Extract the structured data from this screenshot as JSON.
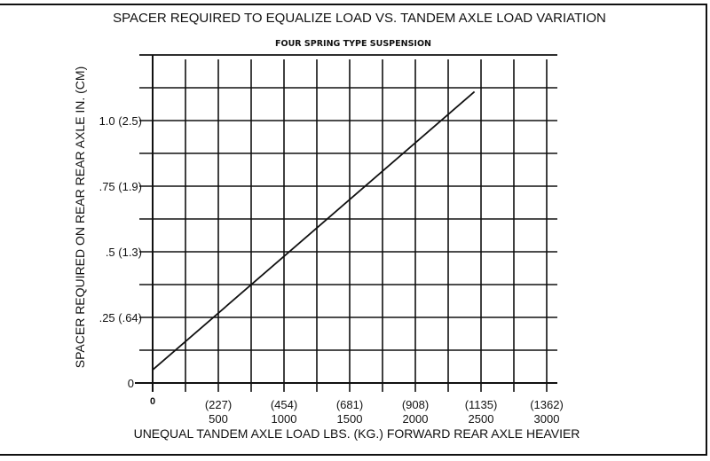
{
  "chart_data": {
    "type": "line",
    "title": "SPACER REQUIRED TO EQUALIZE LOAD VS. TANDEM AXLE LOAD VARIATION",
    "subtitle": "FOUR SPRING TYPE SUSPENSION",
    "xlabel": "UNEQUAL TANDEM AXLE LOAD LBS. (KG.) FORWARD REAR AXLE HEAVIER",
    "ylabel": "SPACER REQUIRED ON REAR REAR AXLE IN. (CM)",
    "xlim": [
      0,
      3000
    ],
    "ylim": [
      0,
      1.25
    ],
    "grid": true,
    "x_ticks": [
      {
        "value": 0,
        "kg": "",
        "lbs": "0"
      },
      {
        "value": 500,
        "kg": "(227)",
        "lbs": "500"
      },
      {
        "value": 1000,
        "kg": "(454)",
        "lbs": "1000"
      },
      {
        "value": 1500,
        "kg": "(681)",
        "lbs": "1500"
      },
      {
        "value": 2000,
        "kg": "(908)",
        "lbs": "2000"
      },
      {
        "value": 2500,
        "kg": "(1135)",
        "lbs": "2500"
      },
      {
        "value": 3000,
        "kg": "(1362)",
        "lbs": "3000"
      }
    ],
    "y_ticks": [
      {
        "value": 0,
        "label": "0"
      },
      {
        "value": 0.25,
        "label": ".25 (.64)"
      },
      {
        "value": 0.5,
        "label": ".5 (1.3)"
      },
      {
        "value": 0.75,
        "label": ".75 (1.9)"
      },
      {
        "value": 1.0,
        "label": "1.0 (2.5)"
      }
    ],
    "series": [
      {
        "x": [
          0,
          2450
        ],
        "y": [
          0.05,
          1.11
        ]
      }
    ]
  }
}
